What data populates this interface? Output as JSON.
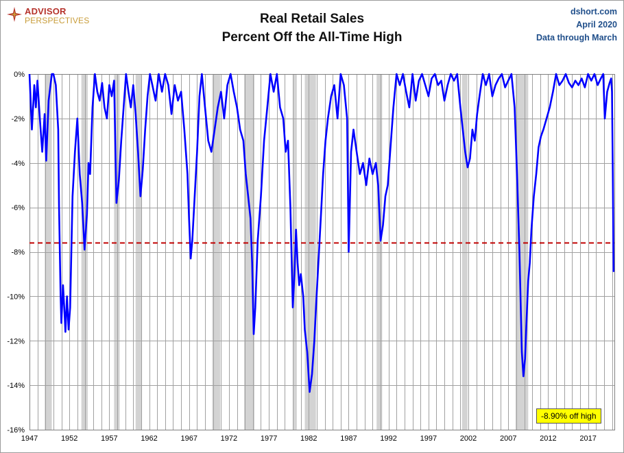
{
  "brand": {
    "line1": "ADVISOR",
    "line2": "PERSPECTIVES",
    "icon": "compass-rose-icon"
  },
  "header": {
    "title_line1": "Real Retail Sales",
    "title_line2": "Percent Off the All-Time High"
  },
  "source": {
    "site": "dshort.com",
    "date": "April 2020",
    "note": "Data through March"
  },
  "callout": {
    "text": "-8.90% off high",
    "color": "#ffff00"
  },
  "colors": {
    "series": "#0000ff",
    "reference_line": "#c00000",
    "recession": "#d3d3d3",
    "grid": "#a0a0a0"
  },
  "chart_data": {
    "type": "line",
    "title": "Real Retail Sales Percent Off the All-Time High",
    "xlabel": "",
    "ylabel": "",
    "xlim": [
      1947.0,
      2020.3
    ],
    "ylim": [
      -16,
      0
    ],
    "y_ticks": [
      0,
      -2,
      -4,
      -6,
      -8,
      -10,
      -12,
      -14,
      -16
    ],
    "y_tick_labels": [
      "0%",
      "-2%",
      "-4%",
      "-6%",
      "-8%",
      "-10%",
      "-12%",
      "-14%",
      "-16%"
    ],
    "x_ticks": [
      1947,
      1952,
      1957,
      1962,
      1967,
      1972,
      1977,
      1982,
      1987,
      1992,
      1997,
      2002,
      2007,
      2012,
      2017
    ],
    "grid": "vertical lines each year, horizontal lines at each y tick",
    "legend": "none",
    "reference_line": {
      "value": -7.6,
      "style": "dashed"
    },
    "recessions": [
      [
        1948.9,
        1949.8
      ],
      [
        1953.5,
        1954.3
      ],
      [
        1957.6,
        1958.3
      ],
      [
        1960.3,
        1961.1
      ],
      [
        1969.9,
        1970.9
      ],
      [
        1973.9,
        1975.2
      ],
      [
        1980.0,
        1980.5
      ],
      [
        1981.5,
        1982.9
      ],
      [
        1990.5,
        1991.2
      ],
      [
        2001.2,
        2001.9
      ],
      [
        2007.9,
        2009.5
      ]
    ],
    "series": [
      {
        "x": [
          1947.0,
          1947.3,
          1947.6,
          1947.8,
          1948.0,
          1948.3,
          1948.6,
          1948.9,
          1949.1,
          1949.4,
          1949.8,
          1950.0,
          1950.3,
          1950.6,
          1950.7,
          1950.9,
          1951.0,
          1951.2,
          1951.4,
          1951.5,
          1951.7,
          1951.9,
          1952.1,
          1952.4,
          1952.7,
          1953.0,
          1953.3,
          1953.6,
          1953.9,
          1954.2,
          1954.4,
          1954.6,
          1954.9,
          1955.2,
          1955.5,
          1955.8,
          1956.1,
          1956.4,
          1956.7,
          1957.0,
          1957.3,
          1957.6,
          1957.9,
          1958.2,
          1958.5,
          1958.8,
          1959.1,
          1959.4,
          1959.7,
          1960.0,
          1960.3,
          1960.6,
          1960.9,
          1961.2,
          1961.5,
          1961.8,
          1962.1,
          1962.4,
          1962.8,
          1963.2,
          1963.6,
          1964.0,
          1964.4,
          1964.8,
          1965.2,
          1965.6,
          1966.0,
          1966.4,
          1966.8,
          1967.0,
          1967.2,
          1967.4,
          1967.7,
          1968.0,
          1968.3,
          1968.6,
          1969.0,
          1969.4,
          1969.8,
          1970.2,
          1970.6,
          1971.0,
          1971.4,
          1971.8,
          1972.2,
          1972.6,
          1973.0,
          1973.4,
          1973.8,
          1974.1,
          1974.4,
          1974.7,
          1974.9,
          1975.1,
          1975.3,
          1975.6,
          1976.0,
          1976.4,
          1976.8,
          1977.2,
          1977.6,
          1978.0,
          1978.4,
          1978.8,
          1979.1,
          1979.4,
          1979.7,
          1980.0,
          1980.2,
          1980.4,
          1980.6,
          1980.8,
          1981.0,
          1981.3,
          1981.5,
          1981.8,
          1982.1,
          1982.4,
          1982.7,
          1982.9,
          1983.2,
          1983.5,
          1983.8,
          1984.1,
          1984.4,
          1984.8,
          1985.2,
          1985.6,
          1986.0,
          1986.4,
          1986.8,
          1987.0,
          1987.3,
          1987.6,
          1988.0,
          1988.4,
          1988.8,
          1989.2,
          1989.6,
          1990.0,
          1990.4,
          1990.7,
          1991.0,
          1991.3,
          1991.6,
          1991.9,
          1992.2,
          1992.6,
          1993.0,
          1993.4,
          1993.8,
          1994.2,
          1994.6,
          1995.0,
          1995.4,
          1995.8,
          1996.2,
          1996.6,
          1997.0,
          1997.4,
          1997.8,
          1998.2,
          1998.6,
          1999.0,
          1999.4,
          1999.8,
          2000.2,
          2000.6,
          2001.0,
          2001.3,
          2001.6,
          2001.9,
          2002.2,
          2002.5,
          2002.8,
          2003.1,
          2003.4,
          2003.8,
          2004.2,
          2004.6,
          2005.0,
          2005.4,
          2005.8,
          2006.2,
          2006.6,
          2007.0,
          2007.4,
          2007.8,
          2008.1,
          2008.4,
          2008.7,
          2008.9,
          2009.1,
          2009.3,
          2009.5,
          2009.7,
          2009.9,
          2010.2,
          2010.5,
          2010.8,
          2011.1,
          2011.4,
          2011.8,
          2012.2,
          2012.6,
          2013.0,
          2013.4,
          2013.8,
          2014.2,
          2014.6,
          2015.0,
          2015.4,
          2015.8,
          2016.2,
          2016.6,
          2017.0,
          2017.4,
          2017.8,
          2018.2,
          2018.6,
          2018.9,
          2019.1,
          2019.4,
          2019.7,
          2019.9,
          2020.0,
          2020.1,
          2020.2
        ],
        "y": [
          0.0,
          -2.5,
          -0.5,
          -1.5,
          -0.3,
          -2.0,
          -3.5,
          -1.8,
          -3.9,
          -1.2,
          0.0,
          0.0,
          -0.5,
          -2.5,
          -6.0,
          -10.0,
          -11.2,
          -9.5,
          -10.8,
          -11.6,
          -10.0,
          -11.5,
          -10.5,
          -5.5,
          -3.5,
          -2.0,
          -4.5,
          -5.8,
          -7.9,
          -6.3,
          -4.0,
          -4.5,
          -1.5,
          0.0,
          -0.8,
          -1.2,
          -0.4,
          -1.5,
          -2.0,
          -0.5,
          -1.0,
          -0.3,
          -5.8,
          -4.8,
          -3.0,
          -1.5,
          0.0,
          -0.8,
          -1.5,
          -0.5,
          -1.8,
          -3.5,
          -5.5,
          -4.3,
          -2.5,
          -1.0,
          0.0,
          -0.5,
          -1.2,
          0.0,
          -0.8,
          0.0,
          -0.5,
          -1.8,
          -0.5,
          -1.2,
          -0.8,
          -2.5,
          -4.5,
          -6.5,
          -8.3,
          -7.5,
          -5.5,
          -3.5,
          -1.0,
          0.0,
          -1.5,
          -3.0,
          -3.5,
          -2.5,
          -1.5,
          -0.8,
          -2.0,
          -0.5,
          0.0,
          -0.8,
          -1.5,
          -2.5,
          -3.0,
          -4.5,
          -5.5,
          -6.5,
          -8.5,
          -11.7,
          -10.5,
          -7.5,
          -5.5,
          -3.0,
          -1.5,
          0.0,
          -0.8,
          0.0,
          -1.5,
          -2.0,
          -3.5,
          -3.0,
          -6.0,
          -10.5,
          -9.0,
          -7.0,
          -8.5,
          -9.5,
          -9.0,
          -10.0,
          -11.5,
          -12.5,
          -14.3,
          -13.5,
          -12.0,
          -10.5,
          -8.5,
          -6.5,
          -4.5,
          -3.0,
          -2.0,
          -1.0,
          -0.5,
          -2.0,
          0.0,
          -0.5,
          -2.0,
          -8.0,
          -3.5,
          -2.5,
          -3.5,
          -4.5,
          -4.0,
          -5.0,
          -3.8,
          -4.5,
          -4.0,
          -5.0,
          -7.5,
          -6.8,
          -5.5,
          -5.0,
          -3.5,
          -1.5,
          0.0,
          -0.5,
          0.0,
          -0.8,
          -1.5,
          0.0,
          -1.2,
          -0.3,
          0.0,
          -0.5,
          -1.0,
          -0.2,
          0.0,
          -0.5,
          -0.3,
          -1.2,
          -0.5,
          0.0,
          -0.3,
          0.0,
          -1.5,
          -2.5,
          -3.5,
          -4.2,
          -3.8,
          -2.5,
          -3.0,
          -1.8,
          -1.0,
          0.0,
          -0.5,
          0.0,
          -1.0,
          -0.5,
          -0.2,
          0.0,
          -0.6,
          -0.3,
          0.0,
          -1.5,
          -4.5,
          -8.0,
          -12.5,
          -13.6,
          -12.8,
          -11.0,
          -9.3,
          -8.5,
          -7.0,
          -5.5,
          -4.5,
          -3.3,
          -2.8,
          -2.5,
          -2.0,
          -1.5,
          -0.8,
          0.0,
          -0.5,
          -0.3,
          0.0,
          -0.4,
          -0.6,
          -0.3,
          -0.5,
          -0.2,
          -0.6,
          0.0,
          -0.3,
          0.0,
          -0.5,
          -0.2,
          0.0,
          -2.0,
          -0.8,
          -0.4,
          -0.2,
          -0.8,
          -4.5,
          -8.9
        ]
      }
    ]
  }
}
